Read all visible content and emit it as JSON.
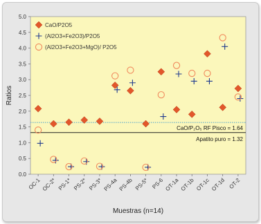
{
  "chart_data": {
    "type": "scatter",
    "xlabel": "Muestras (n=14)",
    "ylabel": "Ratios",
    "ylim": [
      0,
      5
    ],
    "yticks": [
      "0.0",
      "0.5",
      "1.0",
      "1.5",
      "2.0",
      "2.5",
      "3.0",
      "3.5",
      "4.0",
      "4.5",
      "5.0"
    ],
    "categories": [
      "OC-1",
      "OC-2*",
      "PS-1*",
      "PS-2*",
      "PS-3*",
      "PS-4a",
      "PS-4b",
      "PS-5*",
      "PS-6",
      "OT-1a",
      "OT-1b",
      "OT-1c",
      "OT-1d",
      "OT-2"
    ],
    "series": [
      {
        "name": "CaO/P2O5",
        "marker": "diamond",
        "color": "#e2572b",
        "values": [
          2.08,
          1.6,
          1.65,
          1.72,
          1.68,
          2.82,
          2.65,
          1.6,
          3.25,
          2.05,
          1.9,
          3.82,
          2.12,
          2.72
        ]
      },
      {
        "name": "(Al2O3+Fe2O3)/P2O5",
        "marker": "plus",
        "color": "#1f3a8f",
        "values": [
          0.98,
          0.44,
          0.24,
          0.4,
          0.24,
          2.68,
          2.9,
          0.22,
          1.83,
          3.18,
          2.95,
          2.95,
          4.05,
          2.4
        ]
      },
      {
        "name": "(Al2O3+Fe2O3+MgO)/ P2O5",
        "marker": "circle",
        "color": "#f08a5d",
        "values": [
          1.4,
          0.47,
          0.24,
          0.42,
          0.25,
          3.12,
          3.3,
          0.22,
          2.52,
          3.45,
          3.2,
          3.2,
          4.33,
          2.45
        ]
      }
    ],
    "reference_lines": [
      {
        "label": "CaO/P₂O₅ RF Pisco = 1.64",
        "value": 1.64,
        "style": "dotted",
        "color": "#7ab8c9"
      },
      {
        "label": "Apatito puro = 1.32",
        "value": 1.32,
        "style": "solid",
        "color": "#222222"
      }
    ],
    "legend_position": "top-left",
    "grid": false,
    "colors": {
      "plot_background": "#fbf7bb",
      "frame_background": "#e7e7e7"
    }
  }
}
